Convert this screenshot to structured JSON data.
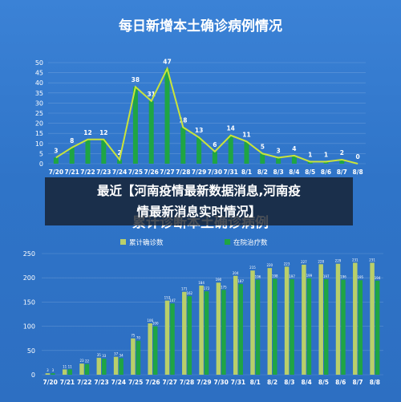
{
  "overlay": {
    "line1": "最近【河南疫情最新数据消息,河南疫",
    "line2": "情最新消息实时情况】"
  },
  "chart_data": [
    {
      "type": "bar+line",
      "title": "每日新增本土确诊病例情况",
      "categories": [
        "7/20",
        "7/21",
        "7/22",
        "7/23",
        "7/24",
        "7/25",
        "7/26",
        "7/27",
        "7/28",
        "7/29",
        "7/30",
        "7/31",
        "8/1",
        "8/2",
        "8/3",
        "8/4",
        "8/5",
        "8/6",
        "8/7",
        "8/8"
      ],
      "values": [
        3,
        8,
        12,
        12,
        2,
        38,
        31,
        47,
        18,
        13,
        6,
        14,
        11,
        5,
        3,
        4,
        1,
        1,
        2,
        0
      ],
      "ylim": [
        0,
        50
      ],
      "yticks": [
        0,
        5,
        10,
        15,
        20,
        25,
        30,
        35,
        40,
        45,
        50
      ],
      "colors": {
        "bar": "#1fa544",
        "line": "#c9e43a",
        "bg": "#3b82d6"
      }
    },
    {
      "type": "bar",
      "title": "累计诊断本土确诊病例",
      "categories": [
        "7/20",
        "7/21",
        "7/22",
        "7/23",
        "7/24",
        "7/25",
        "7/26",
        "7/27",
        "7/28",
        "7/29",
        "7/30",
        "7/31",
        "8/1",
        "8/2",
        "8/3",
        "8/4",
        "8/5",
        "8/6",
        "8/7",
        "8/8"
      ],
      "series": [
        {
          "name": "累计确诊数",
          "values": [
            3,
            11,
            23,
            35,
            37,
            75,
            106,
            153,
            171,
            184,
            190,
            204,
            215,
            220,
            223,
            227,
            228,
            229,
            231,
            231
          ],
          "color": "#b9cf6a"
        },
        {
          "name": "在院治疗数",
          "values": [
            3,
            11,
            22,
            33,
            34,
            70,
            100,
            147,
            162,
            172,
            175,
            187,
            196,
            198,
            197,
            199,
            197,
            196,
            195,
            194
          ],
          "color": "#1fa544"
        }
      ],
      "ylim": [
        0,
        250
      ],
      "yticks": [
        0,
        50,
        100,
        150,
        200,
        250
      ]
    }
  ]
}
